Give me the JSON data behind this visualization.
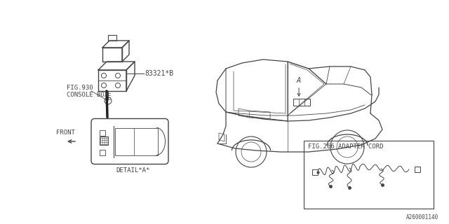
{
  "bg_color": "#ffffff",
  "line_color": "#444444",
  "text_color": "#444444",
  "part_number": "83321*B",
  "fig_label_1": "FIG.930",
  "fig_label_1b": "CONSOLE BOX",
  "fig_label_2": "FIG.266 ADAPTER CORD",
  "detail_label": "DETAIL*A*",
  "front_label": "FRONT",
  "point_a_label": "A",
  "doc_number": "A260001140",
  "font_size_small": 6.5,
  "font_size_medium": 7.5
}
